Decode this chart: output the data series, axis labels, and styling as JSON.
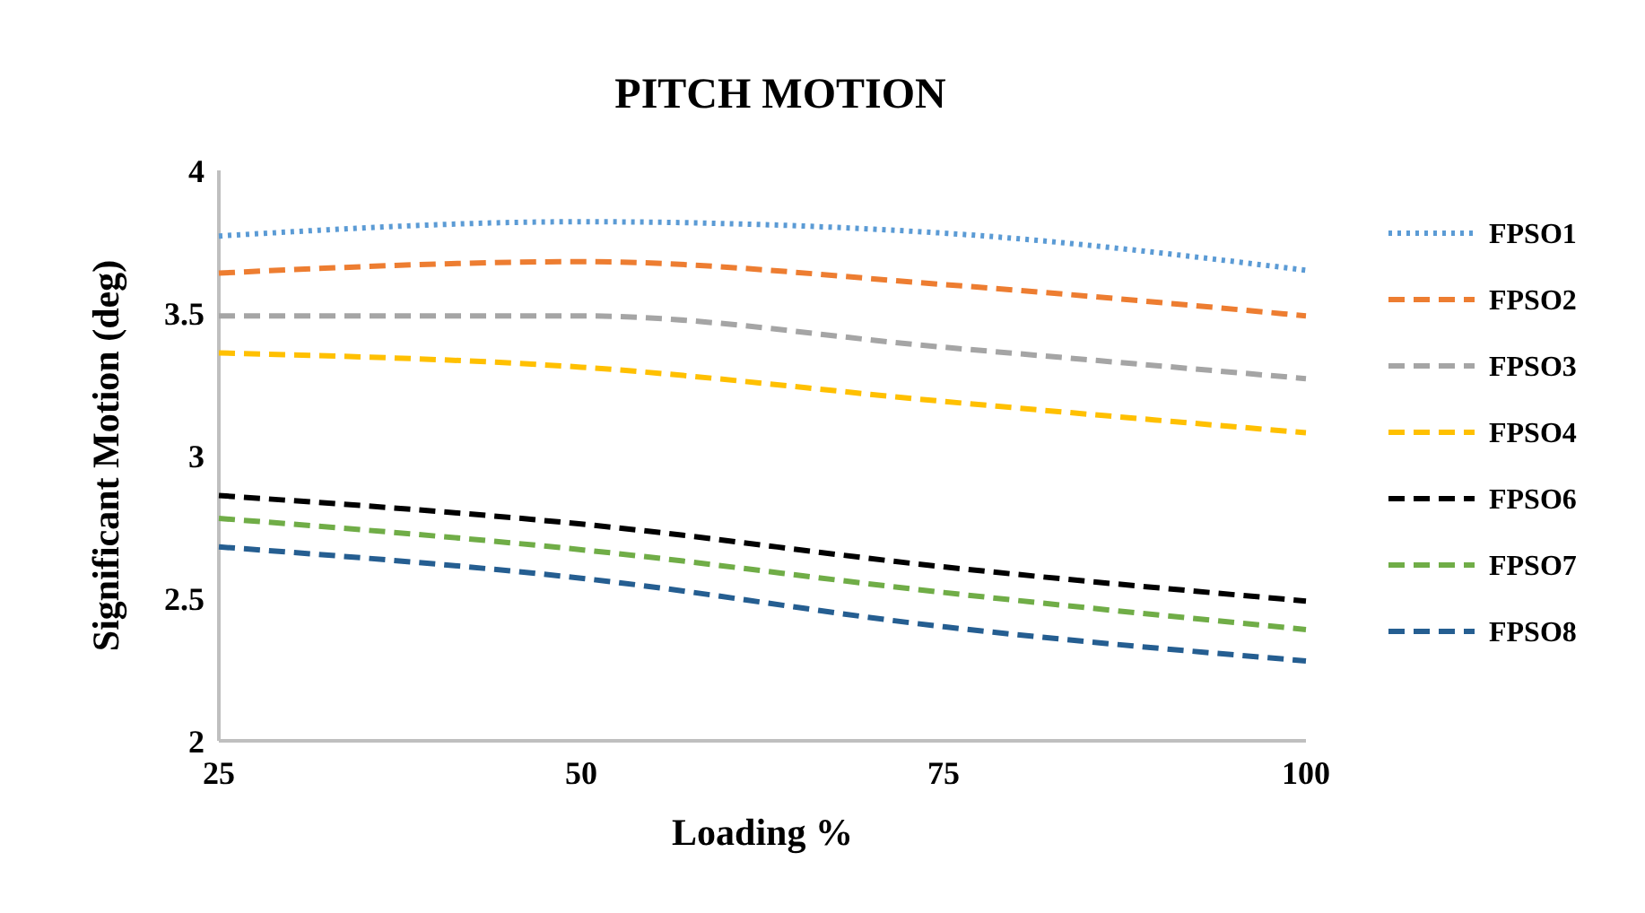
{
  "chart_data": {
    "type": "line",
    "title": "PITCH MOTION",
    "xlabel": "Loading %",
    "ylabel": "Significant Motion (deg)",
    "x": [
      25,
      50,
      75,
      100
    ],
    "xlim": [
      25,
      100
    ],
    "xticks": [
      25,
      50,
      75,
      100
    ],
    "ylim": [
      2,
      4
    ],
    "yticks": [
      2,
      2.5,
      3,
      3.5,
      4
    ],
    "grid": false,
    "legend": "right",
    "marker": "none",
    "series": [
      {
        "name": "FPSO1",
        "color": "#5b9bd5",
        "line_style": "dotted",
        "values": [
          3.77,
          3.82,
          3.78,
          3.65
        ]
      },
      {
        "name": "FPSO2",
        "color": "#ed7d31",
        "line_style": "dashed",
        "values": [
          3.64,
          3.68,
          3.6,
          3.49
        ]
      },
      {
        "name": "FPSO3",
        "color": "#a5a5a5",
        "line_style": "dashed",
        "values": [
          3.49,
          3.49,
          3.38,
          3.27
        ]
      },
      {
        "name": "FPSO4",
        "color": "#ffc000",
        "line_style": "dashed",
        "values": [
          3.36,
          3.31,
          3.19,
          3.08
        ]
      },
      {
        "name": "FPSO6",
        "color": "#000000",
        "line_style": "dashed",
        "values": [
          2.86,
          2.76,
          2.61,
          2.49
        ]
      },
      {
        "name": "FPSO7",
        "color": "#70ad47",
        "line_style": "dashed",
        "values": [
          2.78,
          2.67,
          2.52,
          2.39
        ]
      },
      {
        "name": "FPSO8",
        "color": "#255e91",
        "line_style": "dashed",
        "values": [
          2.68,
          2.57,
          2.4,
          2.28
        ]
      }
    ]
  }
}
